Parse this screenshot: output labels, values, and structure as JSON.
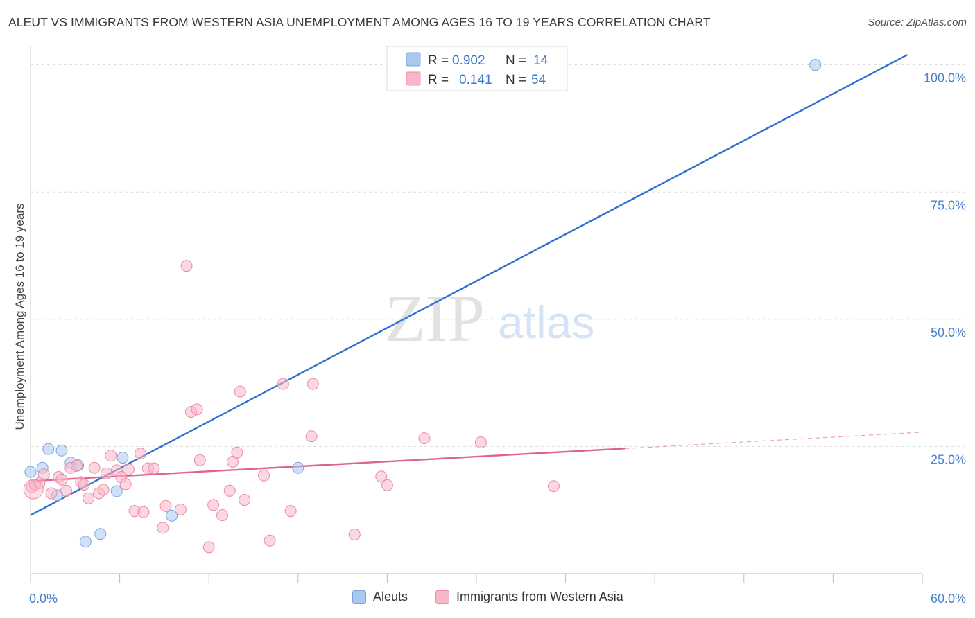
{
  "title": "ALEUT VS IMMIGRANTS FROM WESTERN ASIA UNEMPLOYMENT AMONG AGES 16 TO 19 YEARS CORRELATION CHART",
  "source": "Source: ZipAtlas.com",
  "watermark": {
    "zip": "ZIP",
    "atlas": "atlas"
  },
  "colors": {
    "blue_fill": "#a8c8f0",
    "blue_stroke": "#7aa6dc",
    "blue_line": "#2f6fcf",
    "pink_fill": "#f7b7c9",
    "pink_stroke": "#ec8aa8",
    "pink_line": "#e0628e",
    "axis_label": "#4a7fcf",
    "grid": "#dddddd"
  },
  "legend_top": {
    "rows": [
      {
        "r_label": "R =",
        "r_value": "0.902",
        "n_label": "N =",
        "n_value": "14",
        "series": "blue"
      },
      {
        "r_label": "R =",
        "r_value": "0.141",
        "n_label": "N =",
        "n_value": "54",
        "series": "pink"
      }
    ]
  },
  "legend_bottom": [
    {
      "label": "Aleuts",
      "series": "blue"
    },
    {
      "label": "Immigrants from Western Asia",
      "series": "pink"
    }
  ],
  "chart_data": {
    "type": "scatter",
    "title": "ALEUT VS IMMIGRANTS FROM WESTERN ASIA UNEMPLOYMENT AMONG AGES 16 TO 19 YEARS CORRELATION CHART",
    "xlabel": "",
    "ylabel": "Unemployment Among Ages 16 to 19 years",
    "xlim": [
      0,
      60
    ],
    "ylim": [
      0,
      102
    ],
    "x_tick_labels": [
      {
        "value": 0,
        "label": "0.0%"
      },
      {
        "value": 60,
        "label": "60.0%"
      }
    ],
    "y_tick_labels": [
      {
        "value": 25,
        "label": "25.0%"
      },
      {
        "value": 50,
        "label": "50.0%"
      },
      {
        "value": 75,
        "label": "75.0%"
      },
      {
        "value": 100,
        "label": "100.0%"
      }
    ],
    "x_minor_ticks": [
      6,
      12,
      18,
      24,
      30,
      36,
      42,
      48,
      54,
      60
    ],
    "series": [
      {
        "name": "Aleuts",
        "color": "blue",
        "points": [
          [
            0.0,
            20.0
          ],
          [
            0.8,
            20.8
          ],
          [
            1.2,
            24.5
          ],
          [
            2.1,
            24.2
          ],
          [
            2.7,
            21.8
          ],
          [
            3.2,
            21.3
          ],
          [
            1.8,
            15.4
          ],
          [
            3.7,
            6.3
          ],
          [
            4.7,
            7.8
          ],
          [
            5.8,
            16.2
          ],
          [
            6.2,
            22.8
          ],
          [
            9.5,
            11.4
          ],
          [
            18.0,
            20.8
          ],
          [
            52.8,
            100.0
          ]
        ],
        "trend": {
          "x0": 0,
          "y0": 11.5,
          "x1": 59.0,
          "y1": 102.0
        }
      },
      {
        "name": "Immigrants from Western Asia",
        "color": "pink",
        "points": [
          [
            0.1,
            17.0
          ],
          [
            0.3,
            17.5
          ],
          [
            0.6,
            17.8
          ],
          [
            0.9,
            19.5
          ],
          [
            1.4,
            15.8
          ],
          [
            1.9,
            19.0
          ],
          [
            2.1,
            18.5
          ],
          [
            2.4,
            16.3
          ],
          [
            2.7,
            20.8
          ],
          [
            3.1,
            21.2
          ],
          [
            3.4,
            18.0
          ],
          [
            3.6,
            17.5
          ],
          [
            3.9,
            14.8
          ],
          [
            4.3,
            20.8
          ],
          [
            4.6,
            15.8
          ],
          [
            4.9,
            16.5
          ],
          [
            5.1,
            19.7
          ],
          [
            5.4,
            23.2
          ],
          [
            5.8,
            20.3
          ],
          [
            6.1,
            19.0
          ],
          [
            6.4,
            17.6
          ],
          [
            6.6,
            20.5
          ],
          [
            7.0,
            12.3
          ],
          [
            7.4,
            23.6
          ],
          [
            7.6,
            12.1
          ],
          [
            7.9,
            20.7
          ],
          [
            8.3,
            20.7
          ],
          [
            8.9,
            9.0
          ],
          [
            9.1,
            13.3
          ],
          [
            10.1,
            12.6
          ],
          [
            10.5,
            60.5
          ],
          [
            10.8,
            31.8
          ],
          [
            11.2,
            32.3
          ],
          [
            11.4,
            22.3
          ],
          [
            12.0,
            5.2
          ],
          [
            12.3,
            13.5
          ],
          [
            12.9,
            11.5
          ],
          [
            13.4,
            16.3
          ],
          [
            13.6,
            22.0
          ],
          [
            13.9,
            23.8
          ],
          [
            14.1,
            35.8
          ],
          [
            14.4,
            14.5
          ],
          [
            15.7,
            19.3
          ],
          [
            16.1,
            6.5
          ],
          [
            17.0,
            37.3
          ],
          [
            17.5,
            12.3
          ],
          [
            18.9,
            27.0
          ],
          [
            19.0,
            37.3
          ],
          [
            21.8,
            7.7
          ],
          [
            23.6,
            19.1
          ],
          [
            24.0,
            17.4
          ],
          [
            26.5,
            26.6
          ],
          [
            30.3,
            25.8
          ],
          [
            35.2,
            17.2
          ]
        ],
        "trend": {
          "x0": 0,
          "y0": 18.2,
          "x1": 40.0,
          "y1": 24.6
        },
        "trend_extension": {
          "x0": 40.0,
          "y0": 24.6,
          "x1": 60.0,
          "y1": 27.8
        }
      }
    ]
  }
}
